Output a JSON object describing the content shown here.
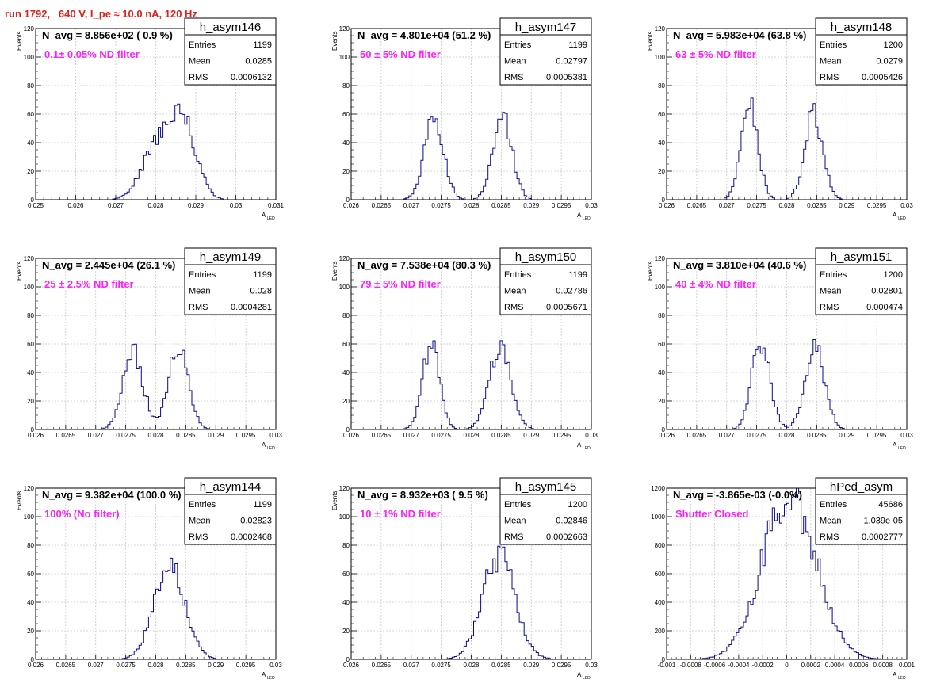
{
  "page": {
    "title": "run 1792,   640 V, I_pe ≈ 10.0 nA, 120 Hz",
    "colors": {
      "title": "#e0201b",
      "annotation": "#ff1fff",
      "histogram": "#0a0a8c",
      "grid": "#c8c8c8",
      "frame": "#000000"
    }
  },
  "chart_data": [
    {
      "type": "bar",
      "name": "h_asym146",
      "note": "N_avg = 8.856e+02 ( 0.9 %)",
      "annotation": "0.1± 0.05% ND filter",
      "stats": [
        [
          "Entries",
          "1199"
        ],
        [
          "Mean",
          "0.0285"
        ],
        [
          "RMS",
          "0.0006132"
        ]
      ],
      "xlabel": "A",
      "xlabel_sub": "LED",
      "ylabel": "Events",
      "xlim": [
        0.025,
        0.031
      ],
      "ylim": [
        0,
        120
      ],
      "xticks": [
        "0.025",
        "0.026",
        "0.027",
        "0.028",
        "0.029",
        "0.03",
        "0.031"
      ],
      "yticks": [
        "0",
        "20",
        "40",
        "60",
        "80",
        "100",
        "120"
      ],
      "grid": true,
      "shape": [
        {
          "mu": 0.02805,
          "sigma": 0.00038,
          "a": 38
        },
        {
          "mu": 0.0287,
          "sigma": 0.00033,
          "a": 50
        }
      ]
    },
    {
      "type": "bar",
      "name": "h_asym147",
      "note": "N_avg = 4.801e+04 (51.2 %)",
      "annotation": "50 ± 5% ND filter",
      "stats": [
        [
          "Entries",
          "1199"
        ],
        [
          "Mean",
          "0.02797"
        ],
        [
          "RMS",
          "0.0005381"
        ]
      ],
      "xlabel": "A",
      "xlabel_sub": "LED",
      "ylabel": "Events",
      "xlim": [
        0.026,
        0.03
      ],
      "ylim": [
        0,
        120
      ],
      "xticks": [
        "0.026",
        "0.0265",
        "0.027",
        "0.0275",
        "0.028",
        "0.0285",
        "0.029",
        "0.0295",
        "0.03"
      ],
      "yticks": [
        "0",
        "20",
        "40",
        "60",
        "80",
        "100",
        "120"
      ],
      "grid": true,
      "shape": [
        {
          "mu": 0.02738,
          "sigma": 0.00016,
          "a": 58
        },
        {
          "mu": 0.02852,
          "sigma": 0.00016,
          "a": 58
        }
      ]
    },
    {
      "type": "bar",
      "name": "h_asym148",
      "note": "N_avg = 5.983e+04 (63.8 %)",
      "annotation": "63 ± 5% ND filter",
      "stats": [
        [
          "Entries",
          "1200"
        ],
        [
          "Mean",
          "0.0279"
        ],
        [
          "RMS",
          "0.0005426"
        ]
      ],
      "xlabel": "A",
      "xlabel_sub": "LED",
      "ylabel": "Events",
      "xlim": [
        0.026,
        0.03
      ],
      "ylim": [
        0,
        120
      ],
      "xticks": [
        "0.026",
        "0.0265",
        "0.027",
        "0.0275",
        "0.028",
        "0.0285",
        "0.029",
        "0.0295",
        "0.03"
      ],
      "yticks": [
        "0",
        "20",
        "40",
        "60",
        "80",
        "100",
        "120"
      ],
      "grid": true,
      "shape": [
        {
          "mu": 0.02738,
          "sigma": 0.00014,
          "a": 66
        },
        {
          "mu": 0.02845,
          "sigma": 0.00015,
          "a": 60
        }
      ]
    },
    {
      "type": "bar",
      "name": "h_asym149",
      "note": "N_avg = 2.445e+04 (26.1 %)",
      "annotation": "25 ± 2.5% ND filter",
      "stats": [
        [
          "Entries",
          "1199"
        ],
        [
          "Mean",
          "0.028"
        ],
        [
          "RMS",
          "0.0004281"
        ]
      ],
      "xlabel": "A",
      "xlabel_sub": "LED",
      "ylabel": "Events",
      "xlim": [
        0.026,
        0.03
      ],
      "ylim": [
        0,
        120
      ],
      "xticks": [
        "0.026",
        "0.0265",
        "0.027",
        "0.0275",
        "0.028",
        "0.0285",
        "0.029",
        "0.0295",
        "0.03"
      ],
      "yticks": [
        "0",
        "20",
        "40",
        "60",
        "80",
        "100",
        "120"
      ],
      "grid": true,
      "shape": [
        {
          "mu": 0.02762,
          "sigma": 0.00017,
          "a": 54
        },
        {
          "mu": 0.02838,
          "sigma": 0.00016,
          "a": 60
        }
      ]
    },
    {
      "type": "bar",
      "name": "h_asym150",
      "note": "N_avg = 7.538e+04 (80.3 %)",
      "annotation": "79 ± 5% ND filter",
      "stats": [
        [
          "Entries",
          "1199"
        ],
        [
          "Mean",
          "0.02786"
        ],
        [
          "RMS",
          "0.0005671"
        ]
      ],
      "xlabel": "A",
      "xlabel_sub": "LED",
      "ylabel": "Events",
      "xlim": [
        0.026,
        0.03
      ],
      "ylim": [
        0,
        120
      ],
      "xticks": [
        "0.026",
        "0.0265",
        "0.027",
        "0.0275",
        "0.028",
        "0.0285",
        "0.029",
        "0.0295",
        "0.03"
      ],
      "yticks": [
        "0",
        "20",
        "40",
        "60",
        "80",
        "100",
        "120"
      ],
      "grid": true,
      "shape": [
        {
          "mu": 0.02733,
          "sigma": 0.00014,
          "a": 60
        },
        {
          "mu": 0.02848,
          "sigma": 0.00018,
          "a": 58
        }
      ]
    },
    {
      "type": "bar",
      "name": "h_asym151",
      "note": "N_avg = 3.810e+04 (40.6 %)",
      "annotation": "40 ± 4% ND filter",
      "stats": [
        [
          "Entries",
          "1200"
        ],
        [
          "Mean",
          "0.02801"
        ],
        [
          "RMS",
          "0.000474"
        ]
      ],
      "xlabel": "A",
      "xlabel_sub": "LED",
      "ylabel": "Events",
      "xlim": [
        0.026,
        0.03
      ],
      "ylim": [
        0,
        120
      ],
      "xticks": [
        "0.026",
        "0.0265",
        "0.027",
        "0.0275",
        "0.028",
        "0.0285",
        "0.029",
        "0.0295",
        "0.03"
      ],
      "yticks": [
        "0",
        "20",
        "40",
        "60",
        "80",
        "100",
        "120"
      ],
      "grid": true,
      "shape": [
        {
          "mu": 0.02757,
          "sigma": 0.00015,
          "a": 62
        },
        {
          "mu": 0.02847,
          "sigma": 0.00016,
          "a": 60
        }
      ]
    },
    {
      "type": "bar",
      "name": "h_asym144",
      "note": "N_avg = 9.382e+04 (100.0 %)",
      "annotation": "100% (No filter)",
      "stats": [
        [
          "Entries",
          "1199"
        ],
        [
          "Mean",
          "0.02823"
        ],
        [
          "RMS",
          "0.0002468"
        ]
      ],
      "xlabel": "A",
      "xlabel_sub": "LED",
      "ylabel": "Events",
      "xlim": [
        0.026,
        0.03
      ],
      "ylim": [
        0,
        120
      ],
      "xticks": [
        "0.026",
        "0.0265",
        "0.027",
        "0.0275",
        "0.028",
        "0.0285",
        "0.029",
        "0.0295",
        "0.03"
      ],
      "yticks": [
        "0",
        "20",
        "40",
        "60",
        "80",
        "100",
        "120"
      ],
      "grid": true,
      "shape": [
        {
          "mu": 0.02823,
          "sigma": 0.00025,
          "a": 68
        }
      ]
    },
    {
      "type": "bar",
      "name": "h_asym145",
      "note": "N_avg = 8.932e+03 ( 9.5 %)",
      "annotation": "10 ± 1% ND filter",
      "stats": [
        [
          "Entries",
          "1200"
        ],
        [
          "Mean",
          "0.02846"
        ],
        [
          "RMS",
          "0.0002663"
        ]
      ],
      "xlabel": "A",
      "xlabel_sub": "LED",
      "ylabel": "Events",
      "xlim": [
        0.026,
        0.03
      ],
      "ylim": [
        0,
        120
      ],
      "xticks": [
        "0.026",
        "0.0265",
        "0.027",
        "0.0275",
        "0.028",
        "0.0285",
        "0.029",
        "0.0295",
        "0.03"
      ],
      "yticks": [
        "0",
        "20",
        "40",
        "60",
        "80",
        "100",
        "120"
      ],
      "grid": true,
      "shape": [
        {
          "mu": 0.02846,
          "sigma": 0.00027,
          "a": 72
        }
      ]
    },
    {
      "type": "bar",
      "name": "hPed_asym",
      "note": "N_avg = -3.865e-03 (-0.0%)",
      "annotation": "Shutter Closed",
      "stats": [
        [
          "Entries",
          "45686"
        ],
        [
          "Mean",
          "-1.039e-05"
        ],
        [
          "RMS",
          "0.0002777"
        ]
      ],
      "xlabel": "A",
      "xlabel_sub": "LED",
      "ylabel": "",
      "xlim": [
        -0.001,
        0.001
      ],
      "ylim": [
        0,
        1300
      ],
      "xticks": [
        "-0.001",
        "-0.0008",
        "-0.0006",
        "-0.0004",
        "-0.0002",
        "0",
        "0.0002",
        "0.0004",
        "0.0006",
        "0.0008",
        "0.001"
      ],
      "yticks": [
        "0",
        "200",
        "400",
        "600",
        "800",
        "1000",
        "1200"
      ],
      "grid": true,
      "shape": [
        {
          "mu": 2e-05,
          "sigma": 0.00022,
          "a": 1270
        }
      ]
    }
  ]
}
